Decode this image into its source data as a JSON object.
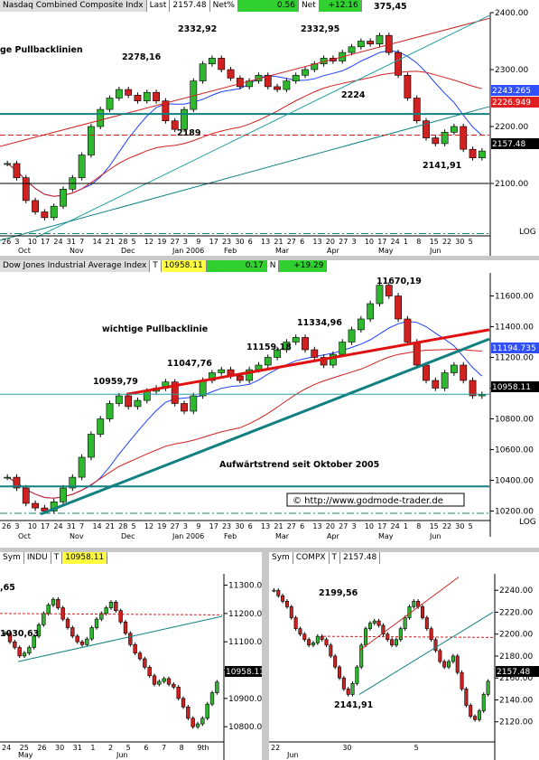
{
  "chart_data": [
    {
      "type": "candlestick",
      "title": "Nasdaq Combined Composite Indx",
      "header": {
        "last_label": "Last",
        "last": "2157.48",
        "netpct_label": "Net%",
        "netpct": "0.56",
        "net_label": "Net",
        "net": "+12.16"
      },
      "scale_label": "LOG",
      "ylim": [
        2000,
        2400
      ],
      "y_ticks": [
        "2400.00",
        "2300.00",
        "2200.00",
        "2100.00"
      ],
      "price_tags": [
        {
          "value": "2243.265",
          "color": "#3050ff"
        },
        {
          "value": "2226.949",
          "color": "#e02020"
        },
        {
          "value": "2157.48",
          "color": "#000000"
        }
      ],
      "x_day_labels": [
        "26",
        "3",
        "10",
        "17",
        "24",
        "31",
        "7",
        "14",
        "21",
        "28",
        "5",
        "12",
        "19",
        "27",
        "3",
        "9",
        "17",
        "23",
        "30",
        "6",
        "13",
        "21",
        "27",
        "6",
        "13",
        "20",
        "27",
        "3",
        "10",
        "17",
        "24",
        "1",
        "8",
        "15",
        "22",
        "30",
        "5"
      ],
      "x_month_labels": [
        "Oct",
        "Nov",
        "Dec",
        "Jan 2006",
        "Feb",
        "Mar",
        "Apr",
        "May",
        "Jun"
      ],
      "annotations": [
        "ge Pullbacklinien",
        "2278,16",
        "2332,92",
        "2332,95",
        "375,45",
        "2224",
        "2189",
        "2141,91"
      ],
      "closes": [
        2135,
        2110,
        2070,
        2050,
        2040,
        2060,
        2090,
        2110,
        2150,
        2200,
        2230,
        2250,
        2265,
        2255,
        2245,
        2260,
        2245,
        2210,
        2195,
        2230,
        2280,
        2310,
        2320,
        2300,
        2285,
        2270,
        2280,
        2290,
        2270,
        2265,
        2280,
        2290,
        2300,
        2310,
        2320,
        2315,
        2330,
        2340,
        2350,
        2345,
        2360,
        2330,
        2290,
        2250,
        2210,
        2180,
        2170,
        2190,
        2200,
        2160,
        2145,
        2157
      ]
    },
    {
      "type": "candlestick",
      "title": "Dow Jones Industrial Average Index",
      "header": {
        "t_label": "T",
        "last": "10958.11",
        "netpct": "0.17",
        "n_label": "N",
        "net": "+19.29"
      },
      "scale_label": "LOG",
      "ylim": [
        10150,
        11750
      ],
      "y_ticks": [
        "11600.00",
        "11400.00",
        "11200.00",
        "11000.00",
        "10800.00",
        "10600.00",
        "10400.00",
        "10200.00"
      ],
      "price_tags": [
        {
          "value": "11194.735",
          "color": "#3050ff"
        },
        {
          "value": "10958.11",
          "color": "#000000"
        }
      ],
      "x_day_labels": [
        "26",
        "3",
        "10",
        "17",
        "24",
        "31",
        "7",
        "14",
        "21",
        "28",
        "5",
        "12",
        "19",
        "27",
        "3",
        "9",
        "17",
        "23",
        "30",
        "6",
        "13",
        "21",
        "27",
        "6",
        "13",
        "20",
        "27",
        "3",
        "10",
        "17",
        "24",
        "1",
        "8",
        "15",
        "22",
        "30",
        "5"
      ],
      "x_month_labels": [
        "Oct",
        "Nov",
        "Dec",
        "Jan 2006",
        "Feb",
        "Mar",
        "Apr",
        "May",
        "Jun"
      ],
      "annotations": [
        "wichtige Pullbacklinie",
        "11047,76",
        "10959,79",
        "11159,18",
        "11334,96",
        "11670,19",
        "Aufwärtstrend seit Oktober 2005"
      ],
      "watermark": "© http://www.godmode-trader.de",
      "closes": [
        10420,
        10350,
        10250,
        10220,
        10200,
        10260,
        10350,
        10420,
        10550,
        10700,
        10800,
        10900,
        10950,
        10880,
        10920,
        10980,
        11000,
        11040,
        10900,
        10850,
        10950,
        11050,
        11100,
        11120,
        11080,
        11050,
        11120,
        11150,
        11200,
        11250,
        11300,
        11330,
        11250,
        11200,
        11150,
        11220,
        11300,
        11380,
        11450,
        11550,
        11670,
        11600,
        11450,
        11300,
        11150,
        11050,
        11000,
        11100,
        11150,
        11050,
        10950,
        10958
      ]
    },
    {
      "type": "candlestick",
      "header": {
        "sym_label": "Sym",
        "symbol": "INDU",
        "t_label": "T",
        "last": "10958.11"
      },
      "ylim": [
        10740,
        11340
      ],
      "y_ticks": [
        "11300.00",
        "11200.00",
        "11100.00",
        "11000.00",
        "10900.00",
        "10800.00"
      ],
      "price_tag": "10958.11",
      "x_day_labels": [
        "24",
        "25",
        "26",
        "30",
        "31",
        "1",
        "2",
        "5",
        "6",
        "7",
        "8",
        "9th"
      ],
      "x_month_labels": [
        "May",
        "Jun"
      ],
      "annotations": [
        ",65",
        "1030,63"
      ],
      "closes": [
        11130,
        11100,
        11080,
        11050,
        11060,
        11080,
        11120,
        11160,
        11200,
        11230,
        11250,
        11220,
        11180,
        11150,
        11120,
        11100,
        11090,
        11110,
        11150,
        11180,
        11200,
        11220,
        11240,
        11210,
        11170,
        11130,
        11090,
        11060,
        11040,
        11010,
        10980,
        10950,
        10960,
        10970,
        10950,
        10940,
        10900,
        10870,
        10830,
        10800,
        10810,
        10830,
        10880,
        10920,
        10958
      ]
    },
    {
      "type": "candlestick",
      "header": {
        "sym_label": "Sym",
        "symbol": "COMPX",
        "t_label": "T",
        "last": "2157.48"
      },
      "ylim": [
        2100,
        2255
      ],
      "y_ticks": [
        "2240.00",
        "2220.00",
        "2200.00",
        "2180.00",
        "2160.00",
        "2140.00",
        "2120.00"
      ],
      "price_tag": "2157.48",
      "x_day_labels": [
        "22",
        "30",
        "5"
      ],
      "x_month_labels": [
        "Jun"
      ],
      "annotations": [
        "2199,56",
        "2141,91"
      ],
      "closes": [
        2240,
        2235,
        2230,
        2225,
        2215,
        2205,
        2200,
        2195,
        2190,
        2192,
        2198,
        2195,
        2190,
        2180,
        2170,
        2160,
        2150,
        2145,
        2155,
        2170,
        2190,
        2205,
        2210,
        2212,
        2208,
        2200,
        2195,
        2190,
        2195,
        2205,
        2215,
        2225,
        2230,
        2225,
        2215,
        2205,
        2195,
        2185,
        2175,
        2170,
        2175,
        2180,
        2165,
        2150,
        2135,
        2125,
        2122,
        2130,
        2145,
        2157
      ]
    }
  ]
}
